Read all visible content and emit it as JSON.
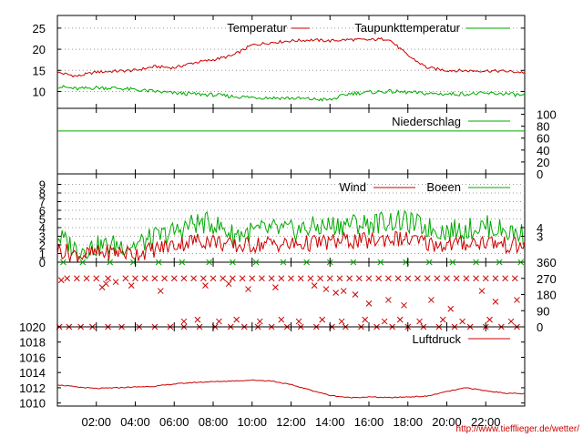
{
  "chart_data": [
    {
      "type": "line",
      "name": "temperature-panel",
      "x": [
        0,
        1,
        2,
        3,
        4,
        5,
        6,
        7,
        8,
        9,
        10,
        11,
        12,
        13,
        14,
        15,
        16,
        17,
        18,
        19,
        20,
        21,
        22,
        23,
        24
      ],
      "yticks": [
        10,
        15,
        20,
        25
      ],
      "ylim": [
        6,
        28
      ],
      "grid": "horizontal dotted",
      "legend_placement": "top-right",
      "series": [
        {
          "name": "Temperatur",
          "color": "#cc0000",
          "values": [
            14.5,
            13.6,
            14.6,
            14.8,
            15.0,
            15.9,
            15.6,
            16.8,
            17.5,
            18.5,
            21.0,
            21.6,
            22.0,
            22.2,
            22.0,
            22.3,
            22.2,
            22.5,
            18.5,
            15.6,
            15.0,
            14.9,
            14.9,
            14.8,
            14.5
          ]
        },
        {
          "name": "Taupunkttemperatur",
          "color": "#00aa00",
          "values": [
            11.2,
            10.6,
            10.9,
            10.8,
            10.4,
            10.0,
            9.6,
            9.4,
            9.2,
            8.8,
            8.6,
            8.5,
            8.4,
            8.2,
            8.0,
            9.5,
            9.8,
            10.0,
            9.8,
            9.5,
            9.4,
            9.4,
            9.5,
            9.5,
            9.0
          ]
        }
      ]
    },
    {
      "type": "line",
      "name": "precipitation-panel",
      "x": [
        0,
        24
      ],
      "yticks_right": [
        0,
        20,
        40,
        60,
        80,
        100
      ],
      "ylim": [
        0,
        110
      ],
      "legend_placement": "top-right",
      "series": [
        {
          "name": "Niederschlag",
          "color": "#00aa00",
          "values": [
            72,
            72
          ]
        }
      ]
    },
    {
      "type": "line",
      "name": "wind-panel",
      "x": [
        0,
        1,
        2,
        3,
        4,
        5,
        6,
        7,
        8,
        9,
        10,
        11,
        12,
        13,
        14,
        15,
        16,
        17,
        18,
        19,
        20,
        21,
        22,
        23,
        24
      ],
      "yticks_left": [
        0,
        1,
        2,
        3,
        4,
        5,
        6,
        7,
        8,
        9
      ],
      "yticks_right": [
        3,
        4
      ],
      "ylim": [
        0,
        10
      ],
      "grid": "horizontal dotted",
      "legend_placement": "top-right",
      "series": [
        {
          "name": "Wind",
          "color": "#cc0000",
          "values": [
            1.5,
            0.8,
            1.0,
            1.2,
            1.0,
            1.5,
            2.0,
            2.5,
            2.5,
            1.8,
            2.0,
            2.2,
            2.0,
            2.2,
            2.3,
            2.5,
            2.4,
            2.8,
            2.6,
            2.2,
            2.0,
            2.2,
            2.4,
            2.0,
            1.8
          ]
        },
        {
          "name": "Boeen",
          "color": "#00aa00",
          "values": [
            3.0,
            1.5,
            1.8,
            2.0,
            2.0,
            2.8,
            3.5,
            4.5,
            4.5,
            3.2,
            3.5,
            3.8,
            3.6,
            4.0,
            4.2,
            4.5,
            4.4,
            4.8,
            4.6,
            4.0,
            3.6,
            3.8,
            4.2,
            3.6,
            3.2
          ]
        }
      ]
    },
    {
      "type": "scatter",
      "name": "wind-direction-panel",
      "yticks_right": [
        0,
        90,
        180,
        270,
        360
      ],
      "ylim": [
        0,
        360
      ],
      "series": [
        {
          "name": "direction",
          "color": "#cc0000",
          "points": [
            [
              0.2,
              260
            ],
            [
              0.5,
              270
            ],
            [
              1.0,
              270
            ],
            [
              1.5,
              270
            ],
            [
              2.0,
              270
            ],
            [
              2.6,
              270
            ],
            [
              3.0,
              250
            ],
            [
              3.5,
              270
            ],
            [
              4.0,
              270
            ],
            [
              4.5,
              270
            ],
            [
              5.0,
              270
            ],
            [
              5.5,
              270
            ],
            [
              6.0,
              270
            ],
            [
              6.5,
              270
            ],
            [
              7.0,
              270
            ],
            [
              7.5,
              270
            ],
            [
              8.0,
              270
            ],
            [
              8.5,
              270
            ],
            [
              9.0,
              270
            ],
            [
              9.5,
              270
            ],
            [
              10.0,
              270
            ],
            [
              10.5,
              270
            ],
            [
              11.0,
              270
            ],
            [
              11.5,
              270
            ],
            [
              12.0,
              270
            ],
            [
              12.5,
              270
            ],
            [
              13.0,
              270
            ],
            [
              13.5,
              270
            ],
            [
              14.0,
              270
            ],
            [
              14.5,
              270
            ],
            [
              15.0,
              270
            ],
            [
              15.5,
              270
            ],
            [
              16.0,
              270
            ],
            [
              16.5,
              270
            ],
            [
              17.0,
              270
            ],
            [
              17.5,
              270
            ],
            [
              18.0,
              270
            ],
            [
              18.5,
              270
            ],
            [
              19.0,
              270
            ],
            [
              19.5,
              270
            ],
            [
              20.0,
              270
            ],
            [
              20.5,
              270
            ],
            [
              21.0,
              270
            ],
            [
              21.5,
              270
            ],
            [
              22.0,
              270
            ],
            [
              22.5,
              270
            ],
            [
              23.0,
              270
            ],
            [
              23.5,
              270
            ],
            [
              2.3,
              220
            ],
            [
              2.5,
              240
            ],
            [
              3.8,
              230
            ],
            [
              5.3,
              200
            ],
            [
              7.6,
              230
            ],
            [
              8.8,
              240
            ],
            [
              9.8,
              210
            ],
            [
              11.2,
              220
            ],
            [
              13.2,
              230
            ],
            [
              13.8,
              210
            ],
            [
              14.3,
              190
            ],
            [
              14.7,
              200
            ],
            [
              15.3,
              180
            ],
            [
              16.0,
              130
            ],
            [
              17.0,
              150
            ],
            [
              17.8,
              120
            ],
            [
              19.2,
              150
            ],
            [
              20.2,
              100
            ],
            [
              21.8,
              200
            ],
            [
              22.5,
              140
            ],
            [
              23.6,
              150
            ],
            [
              0.1,
              0
            ],
            [
              0.6,
              0
            ],
            [
              1.2,
              0
            ],
            [
              1.8,
              0
            ],
            [
              2.6,
              0
            ],
            [
              3.3,
              0
            ],
            [
              4.2,
              0
            ],
            [
              5.0,
              0
            ],
            [
              5.8,
              0
            ],
            [
              6.5,
              0
            ],
            [
              7.3,
              0
            ],
            [
              8.1,
              0
            ],
            [
              8.9,
              0
            ],
            [
              9.6,
              0
            ],
            [
              10.3,
              0
            ],
            [
              11.0,
              0
            ],
            [
              11.8,
              0
            ],
            [
              12.5,
              0
            ],
            [
              13.3,
              0
            ],
            [
              14.1,
              0
            ],
            [
              14.8,
              0
            ],
            [
              15.6,
              0
            ],
            [
              16.4,
              0
            ],
            [
              17.2,
              0
            ],
            [
              18.0,
              0
            ],
            [
              18.8,
              0
            ],
            [
              19.6,
              0
            ],
            [
              20.4,
              0
            ],
            [
              21.2,
              0
            ],
            [
              22.0,
              0
            ],
            [
              22.8,
              0
            ],
            [
              23.6,
              0
            ],
            [
              6.5,
              30
            ],
            [
              7.2,
              40
            ],
            [
              8.3,
              30
            ],
            [
              9.2,
              40
            ],
            [
              10.4,
              30
            ],
            [
              11.5,
              40
            ],
            [
              12.4,
              30
            ],
            [
              13.6,
              40
            ],
            [
              14.6,
              30
            ],
            [
              15.8,
              40
            ],
            [
              16.8,
              30
            ],
            [
              17.6,
              40
            ],
            [
              18.6,
              30
            ],
            [
              19.8,
              40
            ],
            [
              20.8,
              30
            ],
            [
              22.2,
              40
            ],
            [
              23.3,
              30
            ]
          ]
        },
        {
          "name": "direction-calm",
          "color": "#00aa00",
          "points": [
            [
              0.3,
              360
            ],
            [
              1.3,
              360
            ],
            [
              2.7,
              360
            ],
            [
              3.9,
              360
            ],
            [
              5.2,
              360
            ],
            [
              6.4,
              360
            ],
            [
              7.8,
              360
            ],
            [
              9.0,
              360
            ],
            [
              10.2,
              360
            ],
            [
              11.6,
              360
            ],
            [
              12.8,
              360
            ],
            [
              14.0,
              360
            ],
            [
              15.2,
              360
            ],
            [
              16.6,
              360
            ],
            [
              17.9,
              360
            ],
            [
              19.1,
              360
            ],
            [
              20.3,
              360
            ],
            [
              21.5,
              360
            ],
            [
              22.7,
              360
            ],
            [
              23.8,
              360
            ]
          ]
        }
      ]
    },
    {
      "type": "line",
      "name": "pressure-panel",
      "x": [
        0,
        1,
        2,
        3,
        4,
        5,
        6,
        7,
        8,
        9,
        10,
        11,
        12,
        13,
        14,
        15,
        16,
        17,
        18,
        19,
        20,
        21,
        22,
        23,
        24
      ],
      "yticks": [
        1010,
        1012,
        1014,
        1016,
        1018,
        1020
      ],
      "ylim": [
        1009.6,
        1020
      ],
      "legend_placement": "top-right",
      "series": [
        {
          "name": "Luftdruck",
          "color": "#cc0000",
          "values": [
            1012.4,
            1012.1,
            1011.9,
            1012.0,
            1012.1,
            1012.2,
            1012.5,
            1012.7,
            1012.8,
            1012.9,
            1013.0,
            1012.9,
            1012.4,
            1011.7,
            1011.0,
            1010.7,
            1010.8,
            1010.7,
            1010.8,
            1010.9,
            1011.5,
            1012.0,
            1011.6,
            1011.3,
            1011.2
          ]
        }
      ]
    }
  ],
  "xaxis": {
    "ticks": [
      2,
      4,
      6,
      8,
      10,
      12,
      14,
      16,
      18,
      20,
      22
    ],
    "labels": [
      "02:00",
      "04:00",
      "06:00",
      "08:00",
      "10:00",
      "12:00",
      "14:00",
      "16:00",
      "18:00",
      "20:00",
      "22:00"
    ],
    "xlim": [
      0,
      24
    ]
  },
  "footer": {
    "url_text": "http://www.tiefflieger.de/wetter/"
  }
}
